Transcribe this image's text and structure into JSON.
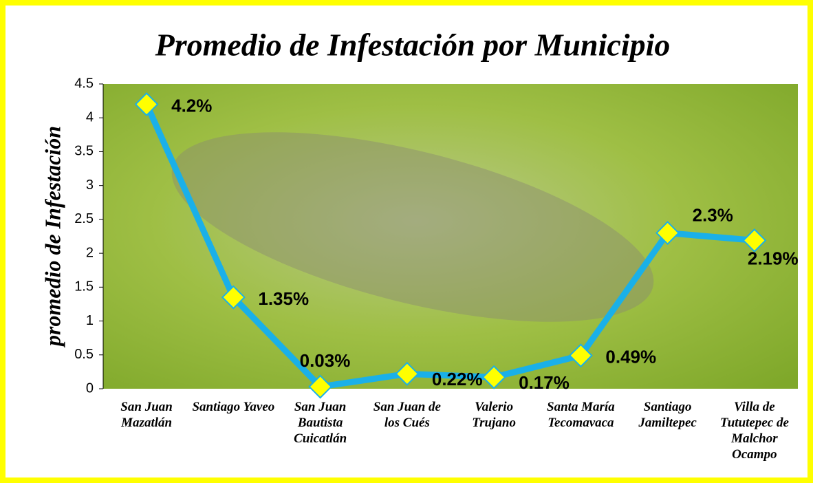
{
  "chart_data": {
    "type": "line",
    "title": "Promedio de Infestación por Municipio",
    "y_label": "promedio de Infestación",
    "categories": [
      "San Juan Mazatlán",
      "Santiago Yaveo",
      "San Juan Bautista Cuicatlán",
      "San Juan de los Cués",
      "Valerio Trujano",
      "Santa María Tecomavaca",
      "Santiago Jamiltepec",
      "Villa de Tututepec de Malchor Ocampo"
    ],
    "values": [
      4.2,
      1.35,
      0.03,
      0.22,
      0.17,
      0.49,
      2.3,
      2.19
    ],
    "value_labels": [
      "4.2%",
      "1.35%",
      "0.03%",
      "0.22%",
      "0.17%",
      "0.49%",
      "2.3%",
      "2.19%"
    ],
    "color": "#1ab0e8",
    "marker_color": "#ffff00",
    "ylim": [
      0,
      4.5
    ],
    "yticks": [
      0,
      0.5,
      1,
      1.5,
      2,
      2.5,
      3,
      3.5,
      4,
      4.5
    ]
  }
}
